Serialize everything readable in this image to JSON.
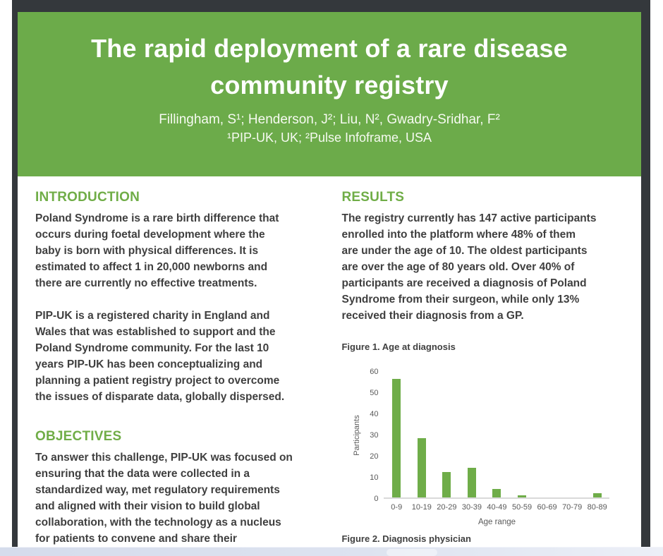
{
  "poster": {
    "header": {
      "title_line1": "The rapid deployment of a rare disease",
      "title_line2": "community registry",
      "authors": "Fillingham, S¹; Henderson, J²; Liu, N², Gwadry-Sridhar, F²",
      "affiliations": "¹PIP-UK, UK; ²Pulse Infoframe, USA",
      "bg_color": "#6cab4a",
      "text_color": "#ffffff"
    },
    "accent_green": "#70ad47",
    "sections": {
      "introduction": {
        "heading": "INTRODUCTION",
        "para1": [
          "Poland Syndrome is a rare birth difference that",
          "occurs during foetal development where the",
          "baby is born with physical differences. It is",
          "estimated to affect 1 in 20,000 newborns and",
          "there are currently no effective treatments."
        ],
        "para2": [
          "PIP-UK is a registered charity in England and",
          "Wales that was established to support and the",
          "Poland Syndrome community. For the last 10",
          "years PIP-UK has been conceptualizing and",
          "planning a patient registry project to overcome",
          "the issues of disparate data, globally dispersed."
        ]
      },
      "objectives": {
        "heading": "OBJECTIVES",
        "para1": [
          "To answer this challenge, PIP-UK was focused on",
          "ensuring that the data were collected in a",
          "standardized way, met regulatory requirements",
          "and aligned with their vision to build global",
          "collaboration, with the technology as a nucleus",
          "for patients to convene and share their"
        ]
      },
      "results": {
        "heading": "RESULTS",
        "para1": [
          "The registry currently has 147 active participants",
          "enrolled into the platform where 48% of them",
          "are under the age of 10. The oldest participants",
          "are over the age of 80 years old. Over 40% of",
          "participants are received a diagnosis of Poland",
          "Syndrome from their surgeon, while only 13%",
          "received their diagnosis from a GP."
        ]
      }
    },
    "figure1_caption": "Figure 1. Age at diagnosis",
    "figure2_caption": "Figure 2. Diagnosis physician"
  },
  "chart_data": {
    "type": "bar",
    "title": "Figure 1. Age at diagnosis",
    "categories": [
      "0-9",
      "10-19",
      "20-29",
      "30-39",
      "40-49",
      "50-59",
      "60-69",
      "70-79",
      "80-89"
    ],
    "values": [
      56,
      28,
      12,
      14,
      4,
      1,
      0,
      0,
      2
    ],
    "xlabel": "Age range",
    "ylabel": "Participants",
    "ylim": [
      0,
      60
    ],
    "ytick_step": 10,
    "bar_color": "#6fad49",
    "axis_color": "#d9d9d9",
    "tick_text_color": "#595959",
    "grid": false,
    "legend": false
  }
}
